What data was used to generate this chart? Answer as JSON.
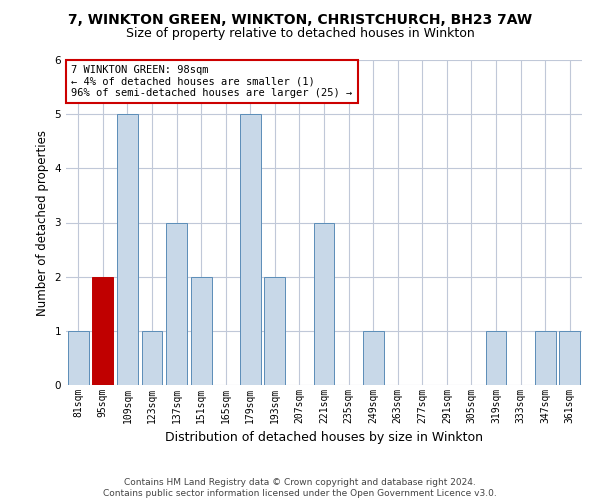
{
  "title1": "7, WINKTON GREEN, WINKTON, CHRISTCHURCH, BH23 7AW",
  "title2": "Size of property relative to detached houses in Winkton",
  "xlabel": "Distribution of detached houses by size in Winkton",
  "ylabel": "Number of detached properties",
  "categories": [
    "81sqm",
    "95sqm",
    "109sqm",
    "123sqm",
    "137sqm",
    "151sqm",
    "165sqm",
    "179sqm",
    "193sqm",
    "207sqm",
    "221sqm",
    "235sqm",
    "249sqm",
    "263sqm",
    "277sqm",
    "291sqm",
    "305sqm",
    "319sqm",
    "333sqm",
    "347sqm",
    "361sqm"
  ],
  "values": [
    1,
    2,
    5,
    1,
    3,
    2,
    0,
    5,
    2,
    0,
    3,
    0,
    1,
    0,
    0,
    0,
    0,
    1,
    0,
    1,
    1
  ],
  "bar_color": "#c8d8e8",
  "bar_edge_color": "#5b8db8",
  "highlight_index": 1,
  "highlight_color": "#c00000",
  "ylim": [
    0,
    6
  ],
  "yticks": [
    0,
    1,
    2,
    3,
    4,
    5,
    6
  ],
  "annotation_line1": "7 WINKTON GREEN: 98sqm",
  "annotation_line2": "← 4% of detached houses are smaller (1)",
  "annotation_line3": "96% of semi-detached houses are larger (25) →",
  "footer1": "Contains HM Land Registry data © Crown copyright and database right 2024.",
  "footer2": "Contains public sector information licensed under the Open Government Licence v3.0.",
  "bg_color": "#ffffff",
  "grid_color": "#c0c8d8",
  "title1_fontsize": 10,
  "title2_fontsize": 9,
  "xlabel_fontsize": 9,
  "ylabel_fontsize": 8.5,
  "tick_fontsize": 7,
  "annotation_fontsize": 7.5,
  "footer_fontsize": 6.5
}
